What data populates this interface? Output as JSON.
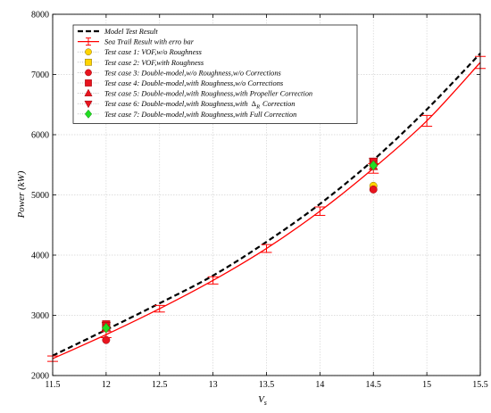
{
  "chart_data": {
    "type": "line",
    "xlabel_main": "V",
    "xlabel_sub": "s",
    "ylabel": "Power (kW)",
    "xlim": [
      11.5,
      15.5
    ],
    "ylim": [
      2000,
      8000
    ],
    "xticks": [
      11.5,
      12,
      12.5,
      13,
      13.5,
      14,
      14.5,
      15,
      15.5
    ],
    "yticks": [
      2000,
      3000,
      4000,
      5000,
      6000,
      7000,
      8000
    ],
    "grid": true,
    "legend_position": "top-left",
    "series": [
      {
        "name": "Model Test Result",
        "kind": "line-dashed",
        "color": "#000000",
        "x": [
          11.5,
          12,
          12.5,
          13,
          13.5,
          14,
          14.5,
          15,
          15.5
        ],
        "y": [
          2330,
          2760,
          3200,
          3660,
          4220,
          4850,
          5580,
          6420,
          7350
        ]
      },
      {
        "name": "Sea Trail Result with erro bar",
        "kind": "line-errorbar",
        "color": "#ff0000",
        "x": [
          11.5,
          12,
          12.5,
          13,
          13.5,
          14,
          14.5,
          15,
          15.5
        ],
        "y": [
          2280,
          2680,
          3110,
          3580,
          4110,
          4730,
          5440,
          6230,
          7200
        ],
        "error": [
          45,
          50,
          55,
          60,
          65,
          70,
          80,
          90,
          100
        ]
      },
      {
        "name": "Test case 1: VOF,w/o Roughness",
        "kind": "marker",
        "marker": "circle",
        "color": "#ffd400",
        "x": [
          12,
          14.5
        ],
        "y": [
          2800,
          5150
        ]
      },
      {
        "name": "Test case 2: VOF,with Roughness",
        "kind": "marker",
        "marker": "square",
        "color": "#ffd400",
        "x": [
          12,
          14.5
        ],
        "y": [
          2830,
          5530
        ]
      },
      {
        "name": "Test case 3: Double-model,w/o Roughness,w/o Corrections",
        "kind": "marker",
        "marker": "circle",
        "color": "#e8141e",
        "x": [
          12,
          14.5
        ],
        "y": [
          2590,
          5090
        ]
      },
      {
        "name": "Test case 4: Double-model,with Roughness,w/o Corrections",
        "kind": "marker",
        "marker": "square",
        "color": "#e8141e",
        "x": [
          12,
          14.5
        ],
        "y": [
          2850,
          5550
        ]
      },
      {
        "name": "Test case 5: Double-model,with Roughness,with Propeller Correction",
        "kind": "marker",
        "marker": "triangle-up",
        "color": "#e8141e",
        "x": [
          12,
          14.5
        ],
        "y": [
          2800,
          5470
        ]
      },
      {
        "name": "Test case 6: Double-model,with Roughness,with",
        "name_symbol": "Δ",
        "name_subscript": "R",
        "name_suffix": "Correction",
        "kind": "marker",
        "marker": "triangle-down",
        "color": "#e8141e",
        "x": [
          12,
          14.5
        ],
        "y": [
          2830,
          5560
        ]
      },
      {
        "name": "Test case 7: Double-model,with Roughness,with Full Correction",
        "kind": "marker",
        "marker": "diamond",
        "color": "#22dd22",
        "x": [
          12,
          14.5
        ],
        "y": [
          2790,
          5490
        ]
      }
    ]
  }
}
